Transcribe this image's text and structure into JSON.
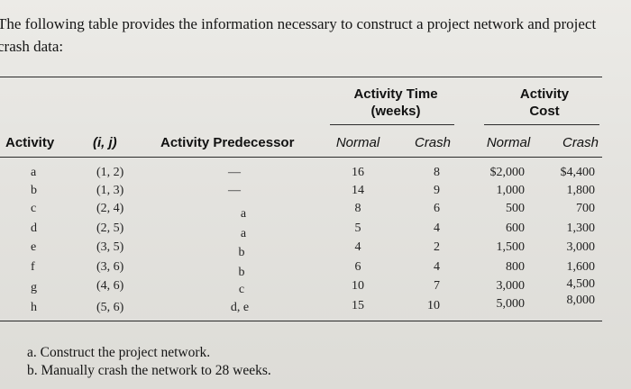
{
  "intro_text": "The following table provides the information necessary to construct a project network and project crash data:",
  "headers": {
    "activity": "Activity",
    "ij": "(i, j)",
    "predecessor": "Activity Predecessor",
    "time_group_line1": "Activity Time",
    "time_group_line2": "(weeks)",
    "cost_group_line1": "Activity",
    "cost_group_line2": "Cost",
    "time_normal": "Normal",
    "time_crash": "Crash",
    "cost_normal": "Normal",
    "cost_crash": "Crash"
  },
  "rows": [
    {
      "activity": "a",
      "ij": "(1, 2)",
      "predecessor": "—",
      "time_normal": "16",
      "time_crash": "8",
      "cost_normal": "$2,000",
      "cost_crash": "$4,400"
    },
    {
      "activity": "b",
      "ij": "(1, 3)",
      "predecessor": "—",
      "time_normal": "14",
      "time_crash": "9",
      "cost_normal": "1,000",
      "cost_crash": "1,800"
    },
    {
      "activity": "c",
      "ij": "(2, 4)",
      "predecessor": "a",
      "time_normal": "8",
      "time_crash": "6",
      "cost_normal": "500",
      "cost_crash": "700"
    },
    {
      "activity": "d",
      "ij": "(2, 5)",
      "predecessor": "a",
      "time_normal": "5",
      "time_crash": "4",
      "cost_normal": "600",
      "cost_crash": "1,300"
    },
    {
      "activity": "e",
      "ij": "(3, 5)",
      "predecessor": "b",
      "time_normal": "4",
      "time_crash": "2",
      "cost_normal": "1,500",
      "cost_crash": "3,000"
    },
    {
      "activity": "f",
      "ij": "(3, 6)",
      "predecessor": "b",
      "time_normal": "6",
      "time_crash": "4",
      "cost_normal": "800",
      "cost_crash": "1,600"
    },
    {
      "activity": "g",
      "ij": "(4, 6)",
      "predecessor": "c",
      "time_normal": "10",
      "time_crash": "7",
      "cost_normal": "3,000",
      "cost_crash": "4,500"
    },
    {
      "activity": "h",
      "ij": "(5, 6)",
      "predecessor": "d, e",
      "time_normal": "15",
      "time_crash": "10",
      "cost_normal": "5,000",
      "cost_crash": "8,000"
    }
  ],
  "questions": [
    "a. Construct the project network.",
    "b. Manually crash the network to 28 weeks."
  ]
}
